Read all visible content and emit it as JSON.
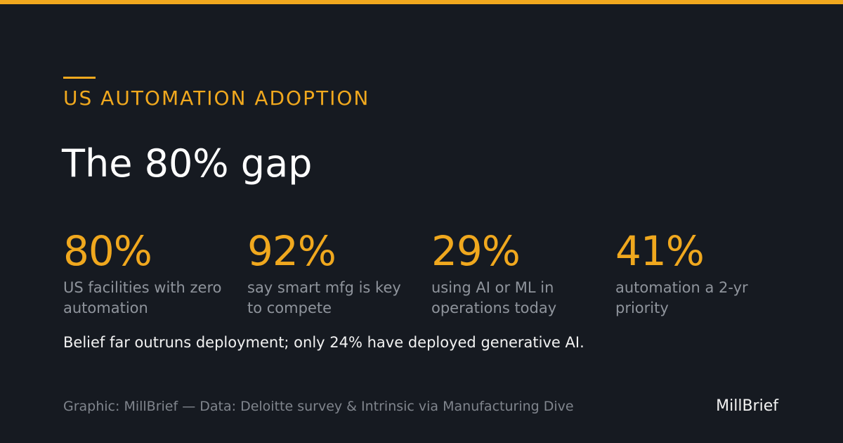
{
  "theme": {
    "background": "#161a21",
    "accent": "#f0a81e",
    "text_primary": "#f2f2f2",
    "text_muted": "#8f949c"
  },
  "header": {
    "kicker": "US AUTOMATION ADOPTION",
    "title": "The 80% gap"
  },
  "stats": [
    {
      "value": "80%",
      "label": "US facilities with zero automation"
    },
    {
      "value": "92%",
      "label": "say smart mfg is key to compete"
    },
    {
      "value": "29%",
      "label": "using AI or ML in operations today"
    },
    {
      "value": "41%",
      "label": "automation a 2-yr priority"
    }
  ],
  "summary": "Belief far outruns deployment; only 24% have deployed generative AI.",
  "footer": {
    "credit": "Graphic: MillBrief — Data: Deloitte survey & Intrinsic via Manufacturing Dive",
    "brand": "MillBrief"
  }
}
